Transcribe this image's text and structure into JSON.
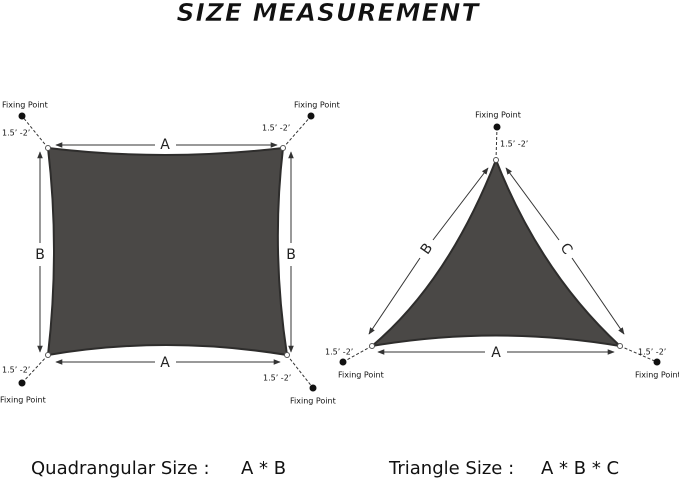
{
  "header": {
    "title": "SIZE MEASUREMENT"
  },
  "quadrangle": {
    "fixing_points": [
      "Fixing Point",
      "Fixing Point",
      "Fixing Point",
      "Fixing Point"
    ],
    "tolerances": [
      "1.5’  -2’",
      "1.5’  -2’",
      "1.5’  -2’",
      "1.5’  -2’"
    ],
    "dimensions": [
      "A",
      "B",
      "B",
      "A"
    ]
  },
  "triangle": {
    "fixing_points": [
      "Fixing Point",
      "Fixing Point",
      "Fixing Point"
    ],
    "tolerances": [
      "1.5’  -2’",
      "1.5’  -2’",
      "1.5’  -2’"
    ],
    "dimensions": [
      "B",
      "C",
      "A"
    ]
  },
  "captions": [
    {
      "label": "Quadrangular Size :",
      "formula": "A * B"
    },
    {
      "label": "Triangle Size :",
      "formula": "A * B * C"
    }
  ]
}
